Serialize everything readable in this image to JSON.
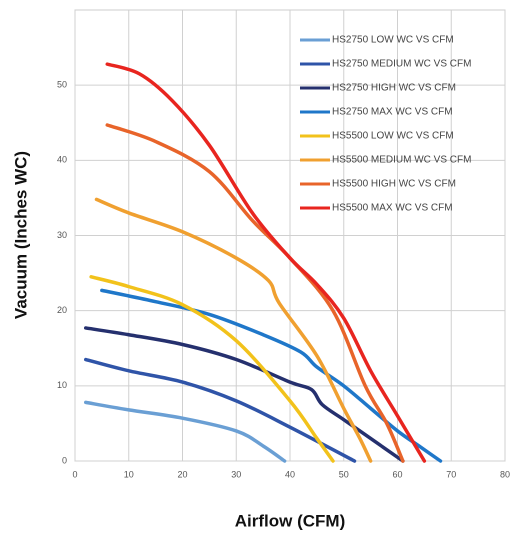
{
  "chart_data": {
    "type": "line",
    "xlabel": "Airflow (CFM)",
    "ylabel": "Vacuum (Inches WC)",
    "xlim": [
      0,
      80
    ],
    "ylim": [
      0,
      60
    ],
    "xticks": [
      0,
      10,
      20,
      30,
      40,
      50,
      60,
      70,
      80
    ],
    "yticks": [
      0,
      10,
      20,
      30,
      40,
      50
    ],
    "grid": true,
    "legend": "upper right",
    "series": [
      {
        "name": "HS2750 LOW WC VS CFM",
        "color": "#6a9fd4",
        "x": [
          2,
          10,
          20,
          30,
          35,
          39
        ],
        "values": [
          7.8,
          6.8,
          5.7,
          4,
          2,
          0
        ]
      },
      {
        "name": "HS2750 MEDIUM WC VS CFM",
        "color": "#2f54a8",
        "x": [
          2,
          10,
          20,
          30,
          40,
          52
        ],
        "values": [
          13.5,
          12,
          10.5,
          8,
          4.5,
          0
        ]
      },
      {
        "name": "HS2750 HIGH WC VS CFM",
        "color": "#25306e",
        "x": [
          2,
          10,
          20,
          30,
          40,
          44,
          46,
          50,
          55,
          61
        ],
        "values": [
          17.7,
          16.8,
          15.5,
          13.5,
          10.5,
          9.5,
          7.5,
          5.5,
          3,
          0
        ]
      },
      {
        "name": "HS2750 MAX WC VS CFM",
        "color": "#1f77c9",
        "x": [
          5,
          15,
          25,
          35,
          42,
          45,
          50,
          55,
          60,
          64,
          68
        ],
        "values": [
          22.7,
          21.2,
          19.5,
          16.8,
          14.5,
          12.5,
          10,
          7,
          4,
          2,
          0
        ]
      },
      {
        "name": "HS5500 LOW WC VS CFM",
        "color": "#f2c21b",
        "x": [
          3,
          10,
          20,
          30,
          40,
          45,
          48
        ],
        "values": [
          24.5,
          23.2,
          20.8,
          16,
          8,
          3,
          0
        ]
      },
      {
        "name": "HS5500 MEDIUM WC VS CFM",
        "color": "#f0a030",
        "x": [
          4,
          10,
          20,
          30,
          36,
          38,
          45,
          50,
          53,
          55
        ],
        "values": [
          34.8,
          33,
          30.5,
          27,
          24,
          21,
          14,
          7,
          3,
          0
        ]
      },
      {
        "name": "HS5500 HIGH WC VS CFM",
        "color": "#e8642a",
        "x": [
          6,
          15,
          25,
          33,
          40,
          48,
          54,
          58,
          61
        ],
        "values": [
          44.7,
          42.5,
          38.5,
          32,
          27,
          20,
          10,
          5,
          0
        ]
      },
      {
        "name": "HS5500 MAX WC VS CFM",
        "color": "#e8251f",
        "x": [
          6,
          12,
          18,
          25,
          33,
          40,
          45,
          50,
          55,
          60,
          65
        ],
        "values": [
          52.8,
          51.5,
          48,
          42,
          33,
          27,
          23.5,
          19,
          12,
          6,
          0
        ]
      }
    ]
  }
}
